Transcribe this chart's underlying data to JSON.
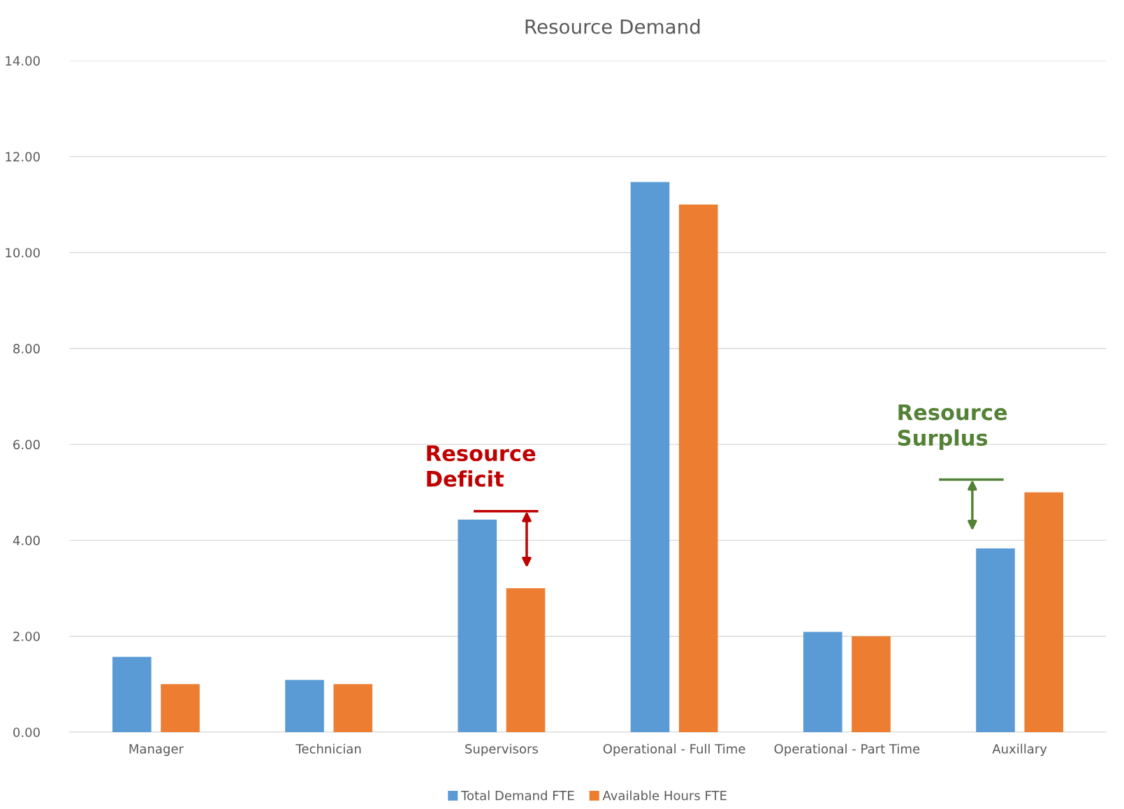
{
  "chart_data": {
    "type": "bar",
    "title": "Resource Demand",
    "categories": [
      "Manager",
      "Technician",
      "Supervisors",
      "Operational - Full Time",
      "Operational - Part Time",
      "Auxillary"
    ],
    "series": [
      {
        "name": "Total Demand FTE",
        "color": "#5b9bd5",
        "values": [
          1.57,
          1.09,
          4.43,
          11.47,
          2.09,
          3.83
        ]
      },
      {
        "name": "Available Hours FTE",
        "color": "#ed7d31",
        "values": [
          1.0,
          1.0,
          3.0,
          11.0,
          2.0,
          5.0
        ]
      }
    ],
    "ylim": [
      0,
      14
    ],
    "yticks": [
      {
        "value": 0,
        "label": "0.00"
      },
      {
        "value": 2,
        "label": "2.00"
      },
      {
        "value": 4,
        "label": "4.00"
      },
      {
        "value": 6,
        "label": "6.00"
      },
      {
        "value": 8,
        "label": "8.00"
      },
      {
        "value": 10,
        "label": "10.00"
      },
      {
        "value": 12,
        "label": "12.00"
      },
      {
        "value": 14,
        "label": "14.00"
      }
    ],
    "grid": "y",
    "legend": "bottom",
    "annotations": [
      "Resource\nDeficit",
      "Resource\nSurplus"
    ]
  }
}
